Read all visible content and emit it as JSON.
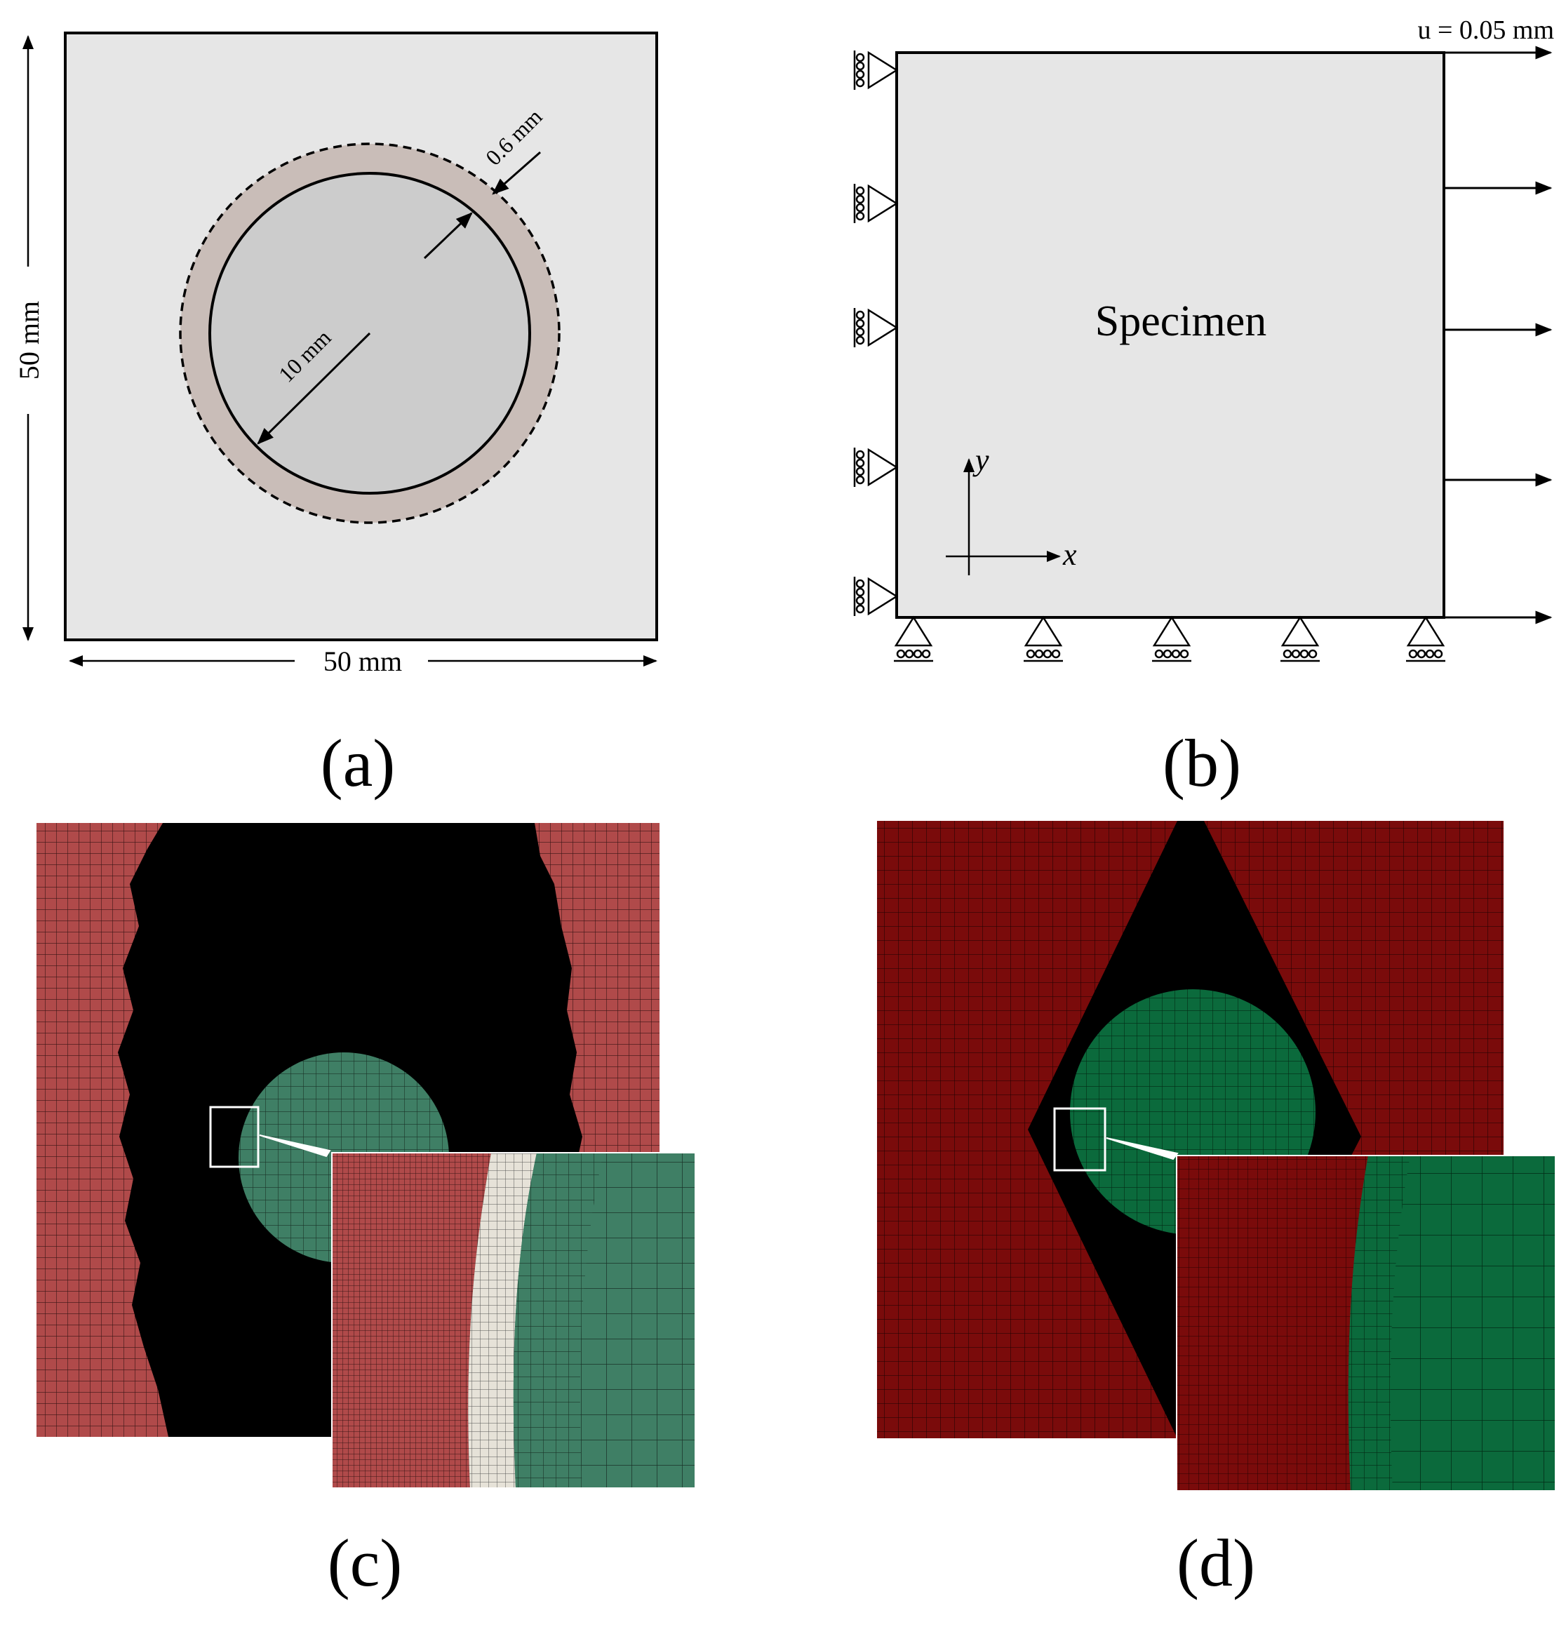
{
  "panel_a": {
    "width_label": "50 mm",
    "height_label": "50 mm",
    "radius_label": "10 mm",
    "thickness_label": "0.6 mm"
  },
  "panel_b": {
    "load_label": "u = 0.05 mm",
    "specimen_label": "Specimen",
    "x_axis_label": "x",
    "y_axis_label": "y"
  },
  "captions": [
    "(a)",
    "(b)",
    "(c)",
    "(d)"
  ],
  "colors": {
    "plate": "#e6e6e6",
    "inclusion": "#cccccc",
    "interface": "#c9bdb8",
    "mesh_matrix_c": "#b04a4a",
    "mesh_inclusion_c": "#3f7f65",
    "mesh_interface_c": "#e6e2d8",
    "mesh_matrix_d": "#7a0b0b",
    "mesh_inclusion_d": "#0b6a3c",
    "void": "#000000"
  }
}
